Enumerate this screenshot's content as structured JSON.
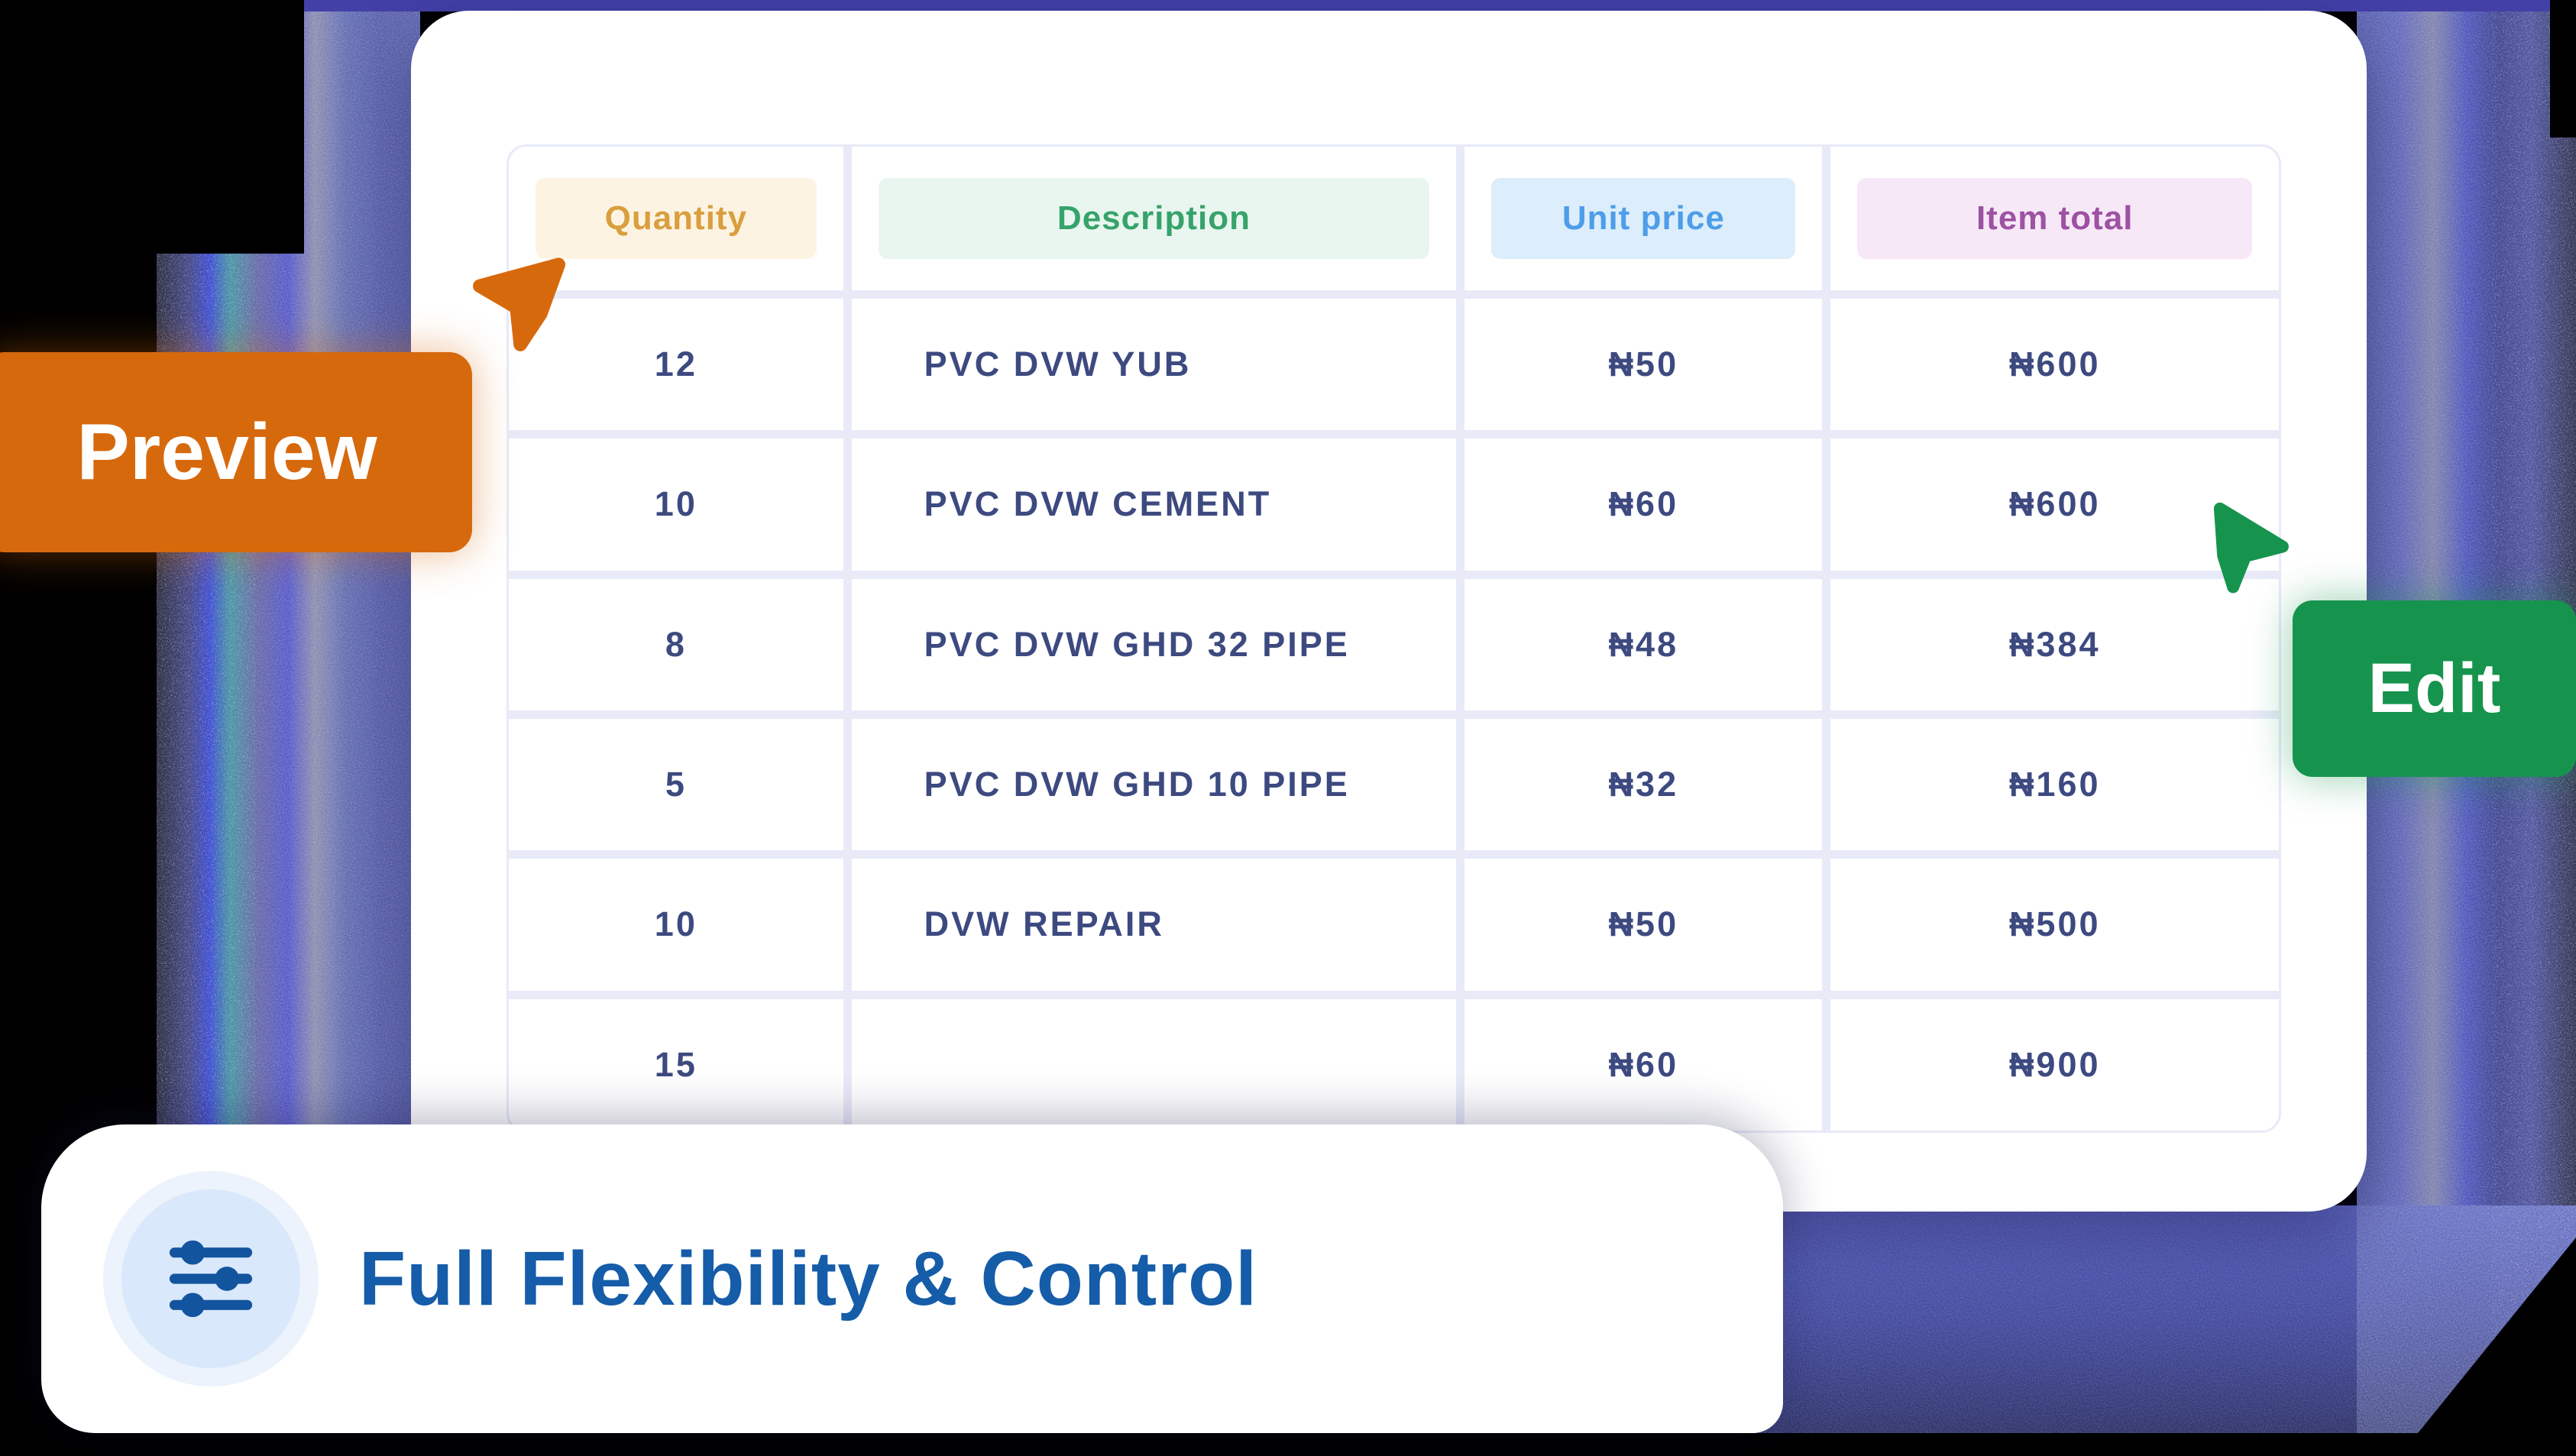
{
  "table": {
    "columns": [
      {
        "label": "Quantity",
        "text_color": "#d99f3e",
        "chip_bg": "#fdf3e2"
      },
      {
        "label": "Description",
        "text_color": "#36a36b",
        "chip_bg": "#e9f6ef"
      },
      {
        "label": "Unit price",
        "text_color": "#4d9de9",
        "chip_bg": "#dcedfb"
      },
      {
        "label": "Item total",
        "text_color": "#9d52a2",
        "chip_bg": "#f7e8f8"
      }
    ],
    "rows": [
      {
        "quantity": "12",
        "description": "PVC DVW YUB",
        "unit_price": "₦50",
        "item_total": "₦600"
      },
      {
        "quantity": "10",
        "description": "PVC DVW CEMENT",
        "unit_price": "₦60",
        "item_total": "₦600"
      },
      {
        "quantity": "8",
        "description": "PVC DVW GHD 32 PIPE",
        "unit_price": "₦48",
        "item_total": "₦384"
      },
      {
        "quantity": "5",
        "description": "PVC DVW GHD 10 PIPE",
        "unit_price": "₦32",
        "item_total": "₦160"
      },
      {
        "quantity": "10",
        "description": "DVW REPAIR",
        "unit_price": "₦50",
        "item_total": "₦500"
      },
      {
        "quantity": "15",
        "description": "",
        "unit_price": "₦60",
        "item_total": "₦900"
      }
    ]
  },
  "cursor_labels": {
    "preview": "Preview",
    "edit": "Edit"
  },
  "banner": {
    "title": "Full Flexibility & Control"
  },
  "icons": {
    "badge": "sliders-icon",
    "preview_cursor": "orange-pointer-cursor-icon",
    "edit_cursor": "green-pointer-cursor-icon"
  },
  "colors": {
    "preview_orange": "#d7690d",
    "edit_green": "#16944d",
    "banner_title_blue": "#155ca9",
    "cell_text_navy": "#3d4a80",
    "table_grid_lavender": "#e8eaf8",
    "badge_bg_blue": "#d9e8fa",
    "badge_icon_blue": "#13549e",
    "top_strip_indigo": "#4340a8",
    "currency_symbol": "₦"
  }
}
